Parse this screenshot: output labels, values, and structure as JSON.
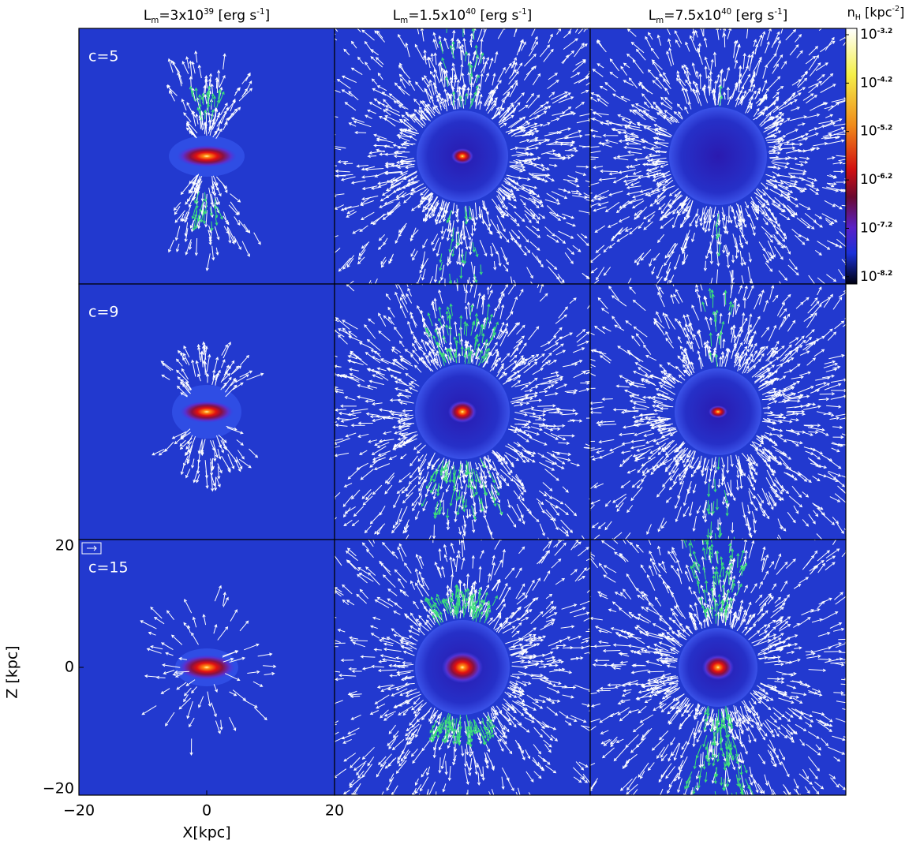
{
  "column_titles": [
    [
      "L",
      "m",
      "=3x10",
      "39",
      " [erg s",
      "-1",
      "]"
    ],
    [
      "L",
      "m",
      "=1.5x10",
      "40",
      " [erg s",
      "-1",
      "]"
    ],
    [
      "L",
      "m",
      "=7.5x10",
      "40",
      " [erg s",
      "-1",
      "]"
    ]
  ],
  "row_labels": [
    "c=5",
    "c=9",
    "c=15"
  ],
  "x_axis": {
    "label": "X[kpc]",
    "lim": [
      -20,
      20
    ],
    "ticks": [
      {
        "value": -20,
        "label": "−20"
      },
      0,
      20
    ]
  },
  "y_axis": {
    "label": "Z [kpc]",
    "lim": [
      -20,
      20
    ],
    "ticks": [
      20,
      0,
      {
        "value": -20,
        "label": "−20"
      }
    ]
  },
  "colorbar": {
    "title": [
      "n",
      "H",
      " [kpc",
      "-2",
      "]"
    ],
    "base": "10",
    "lim": [
      -8.35,
      -3.07
    ],
    "ticks": [
      -3.2,
      -4.2,
      -5.2,
      -6.2,
      -7.2,
      -8.2
    ]
  }
}
